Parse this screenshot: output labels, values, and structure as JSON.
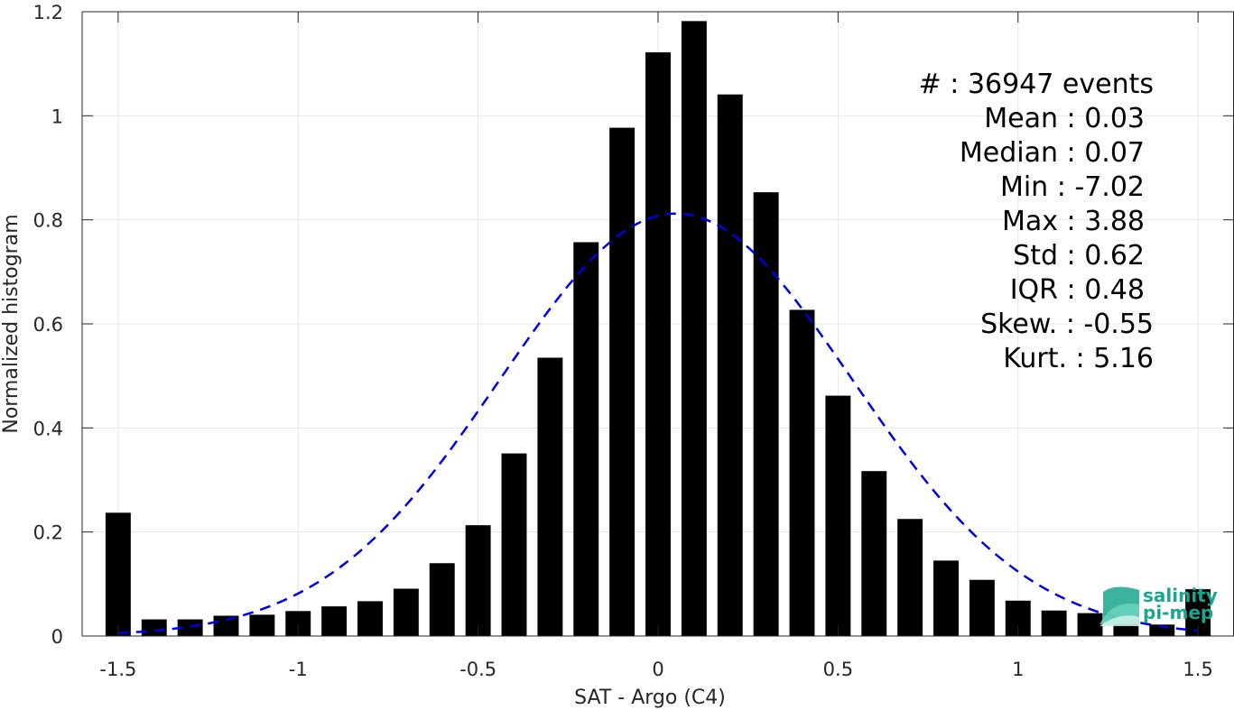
{
  "chart_data": {
    "type": "bar",
    "title": "",
    "xlabel": "SAT - Argo (C4)",
    "ylabel": "Normalized histogram",
    "xlim": [
      -1.6,
      1.6
    ],
    "ylim": [
      0,
      1.2
    ],
    "grid": true,
    "x_ticks": [
      -1.5,
      -1,
      -0.5,
      0,
      0.5,
      1,
      1.5
    ],
    "x_tick_labels": [
      "-1.5",
      "-1",
      "-0.5",
      "0",
      "0.5",
      "1",
      "1.5"
    ],
    "y_ticks": [
      0,
      0.2,
      0.4,
      0.6,
      0.8,
      1,
      1.2
    ],
    "y_tick_labels": [
      "0",
      "0.2",
      "0.4",
      "0.6",
      "0.8",
      "1",
      "1.2"
    ],
    "bar_width": 0.07,
    "x": [
      -1.5,
      -1.4,
      -1.3,
      -1.2,
      -1.1,
      -1.0,
      -0.9,
      -0.8,
      -0.7,
      -0.6,
      -0.5,
      -0.4,
      -0.3,
      -0.2,
      -0.1,
      0.0,
      0.1,
      0.2,
      0.3,
      0.4,
      0.5,
      0.6,
      0.7,
      0.8,
      0.9,
      1.0,
      1.1,
      1.2,
      1.3,
      1.4,
      1.5
    ],
    "values": [
      0.237,
      0.032,
      0.032,
      0.039,
      0.041,
      0.048,
      0.057,
      0.067,
      0.091,
      0.14,
      0.213,
      0.351,
      0.535,
      0.757,
      0.977,
      1.122,
      1.182,
      1.041,
      0.853,
      0.627,
      0.462,
      0.317,
      0.225,
      0.145,
      0.108,
      0.068,
      0.049,
      0.044,
      0.03,
      0.022,
      0.09
    ],
    "fit_curve": {
      "style": "dashed",
      "color": "#0000e6",
      "mean": 0.05,
      "std": 0.49,
      "peak": 0.812,
      "x_range": [
        -1.5,
        1.5
      ]
    },
    "annotations": [
      "#  : 36947 events",
      "Mean : 0.03",
      "Median : 0.07",
      "Min : -7.02",
      "Max : 3.88",
      "Std : 0.62",
      "IQR : 0.48",
      "Skew. : -0.55",
      "Kurt. : 5.16"
    ],
    "colors": {
      "bars": "#000000",
      "grid": "#e6e6e6",
      "axis": "#262626"
    }
  },
  "logo": {
    "line1": "salinity",
    "line2": "pi-mep",
    "color": "#1aa68e"
  }
}
